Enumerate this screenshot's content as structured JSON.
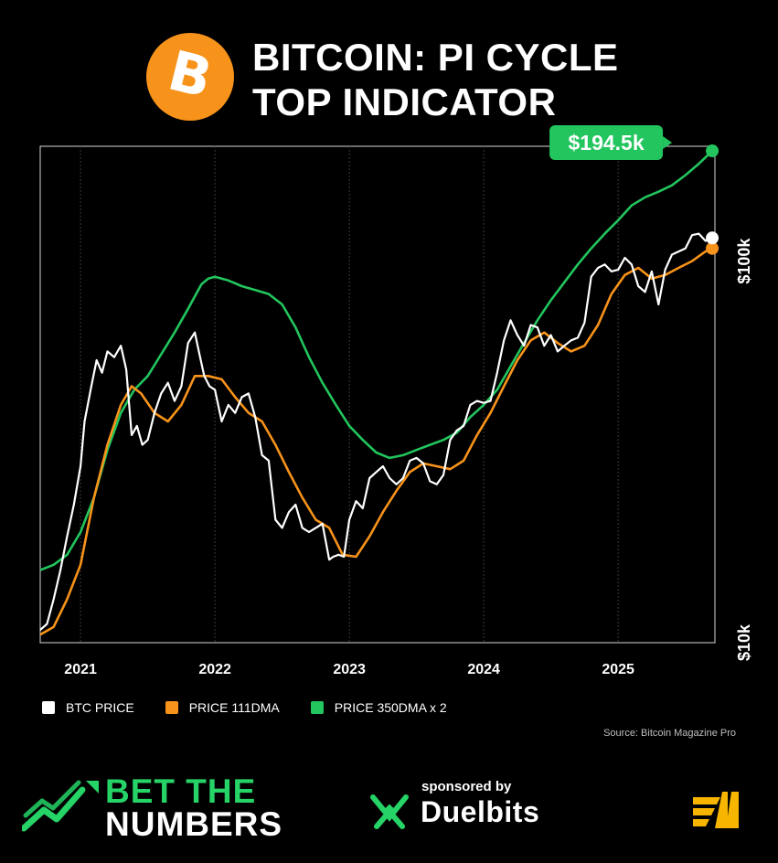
{
  "header": {
    "logo_icon": "bitcoin-logo-icon",
    "logo_symbol": "B",
    "title_line1": "BITCOIN: PI CYCLE",
    "title_line2": "TOP INDICATOR"
  },
  "colors": {
    "btc": "#ffffff",
    "dma111": "#f7931a",
    "dma350x2": "#22c55e",
    "logo": "#f7931a",
    "brand_green": "#25d366"
  },
  "chart_data": {
    "type": "line",
    "title": "BITCOIN: PI CYCLE TOP INDICATOR",
    "xlabel": "",
    "ylabel": "",
    "yscale": "log",
    "ylim": [
      10000,
      200000
    ],
    "xlim": [
      2020.7,
      2025.72
    ],
    "x_ticks": [
      2021,
      2022,
      2023,
      2024,
      2025
    ],
    "x_tick_labels": [
      "2021",
      "2022",
      "2023",
      "2024",
      "2025"
    ],
    "y_ticks": [
      10000,
      100000
    ],
    "y_tick_labels": [
      "$10k",
      "$100k"
    ],
    "grid": "vertical",
    "callout": {
      "label": "$194.5k",
      "series": "PRICE 350DMA x 2",
      "value": 194500
    },
    "series": [
      {
        "name": "BTC PRICE",
        "color": "#ffffff",
        "x": [
          2020.7,
          2020.75,
          2020.8,
          2020.85,
          2020.9,
          2020.95,
          2021.0,
          2021.03,
          2021.08,
          2021.12,
          2021.16,
          2021.2,
          2021.25,
          2021.3,
          2021.34,
          2021.38,
          2021.42,
          2021.46,
          2021.5,
          2021.55,
          2021.6,
          2021.65,
          2021.7,
          2021.75,
          2021.8,
          2021.85,
          2021.88,
          2021.92,
          2021.96,
          2022.0,
          2022.05,
          2022.1,
          2022.15,
          2022.2,
          2022.25,
          2022.3,
          2022.35,
          2022.4,
          2022.45,
          2022.5,
          2022.55,
          2022.6,
          2022.65,
          2022.7,
          2022.75,
          2022.8,
          2022.85,
          2022.88,
          2022.92,
          2022.96,
          2023.0,
          2023.05,
          2023.1,
          2023.15,
          2023.2,
          2023.25,
          2023.3,
          2023.35,
          2023.4,
          2023.45,
          2023.5,
          2023.55,
          2023.6,
          2023.65,
          2023.7,
          2023.75,
          2023.8,
          2023.85,
          2023.9,
          2023.95,
          2024.0,
          2024.05,
          2024.1,
          2024.15,
          2024.2,
          2024.25,
          2024.3,
          2024.35,
          2024.4,
          2024.45,
          2024.5,
          2024.55,
          2024.6,
          2024.65,
          2024.7,
          2024.75,
          2024.8,
          2024.85,
          2024.9,
          2024.95,
          2025.0,
          2025.05,
          2025.1,
          2025.15,
          2025.2,
          2025.25,
          2025.3,
          2025.35,
          2025.4,
          2025.45,
          2025.5,
          2025.55,
          2025.6,
          2025.65,
          2025.7
        ],
        "values": [
          10800,
          11200,
          13000,
          15500,
          19000,
          23000,
          29000,
          38000,
          47000,
          55000,
          51000,
          58000,
          56000,
          60000,
          52000,
          35000,
          37000,
          33000,
          34000,
          40000,
          45000,
          48000,
          43000,
          47000,
          61000,
          65000,
          58000,
          50000,
          47000,
          46000,
          38000,
          42000,
          40000,
          44000,
          45000,
          39000,
          31000,
          30000,
          21000,
          20000,
          22000,
          23000,
          20000,
          19500,
          20000,
          20500,
          16500,
          16800,
          17000,
          16800,
          21000,
          23500,
          22500,
          27000,
          28000,
          29000,
          27000,
          26000,
          27000,
          30000,
          30500,
          29500,
          26500,
          26000,
          27500,
          34000,
          36000,
          37000,
          42000,
          43000,
          42500,
          43000,
          51000,
          62000,
          70000,
          64000,
          60000,
          68000,
          67000,
          60000,
          64000,
          58000,
          60000,
          62000,
          63000,
          69000,
          91000,
          96000,
          98000,
          94000,
          95000,
          102000,
          98000,
          86000,
          83000,
          94000,
          77000,
          95000,
          104000,
          106000,
          108000,
          117000,
          118000,
          113000,
          115000
        ]
      },
      {
        "name": "PRICE 111DMA",
        "color": "#f7931a",
        "x": [
          2020.7,
          2020.8,
          2020.9,
          2021.0,
          2021.1,
          2021.2,
          2021.3,
          2021.38,
          2021.45,
          2021.55,
          2021.65,
          2021.75,
          2021.85,
          2021.95,
          2022.05,
          2022.15,
          2022.25,
          2022.35,
          2022.45,
          2022.55,
          2022.65,
          2022.75,
          2022.85,
          2022.95,
          2023.05,
          2023.15,
          2023.25,
          2023.35,
          2023.45,
          2023.55,
          2023.65,
          2023.75,
          2023.85,
          2023.95,
          2024.05,
          2024.15,
          2024.25,
          2024.35,
          2024.45,
          2024.55,
          2024.65,
          2024.75,
          2024.85,
          2024.95,
          2025.05,
          2025.15,
          2025.25,
          2025.35,
          2025.45,
          2025.55,
          2025.65,
          2025.7
        ],
        "values": [
          10500,
          11000,
          13000,
          16000,
          24000,
          33000,
          42000,
          47000,
          45000,
          40000,
          38000,
          42000,
          50000,
          50000,
          49000,
          44000,
          40000,
          38000,
          33000,
          28000,
          24000,
          21000,
          20000,
          17000,
          16800,
          19000,
          22000,
          25000,
          28000,
          29500,
          29000,
          28500,
          30000,
          35000,
          40000,
          47000,
          55000,
          62000,
          65000,
          61000,
          58000,
          60000,
          68000,
          82000,
          92000,
          96000,
          90000,
          92000,
          96000,
          100000,
          106000,
          108000
        ]
      },
      {
        "name": "PRICE 350DMA x 2",
        "color": "#22c55e",
        "x": [
          2020.7,
          2020.8,
          2020.9,
          2021.0,
          2021.1,
          2021.2,
          2021.3,
          2021.4,
          2021.5,
          2021.6,
          2021.7,
          2021.8,
          2021.9,
          2021.95,
          2022.0,
          2022.1,
          2022.2,
          2022.3,
          2022.4,
          2022.5,
          2022.6,
          2022.7,
          2022.8,
          2022.9,
          2023.0,
          2023.1,
          2023.2,
          2023.3,
          2023.4,
          2023.5,
          2023.6,
          2023.7,
          2023.8,
          2023.9,
          2024.0,
          2024.1,
          2024.2,
          2024.3,
          2024.4,
          2024.5,
          2024.6,
          2024.7,
          2024.8,
          2024.9,
          2025.0,
          2025.1,
          2025.2,
          2025.3,
          2025.4,
          2025.5,
          2025.6,
          2025.7
        ],
        "values": [
          15500,
          16000,
          17000,
          19500,
          24000,
          32000,
          40000,
          46000,
          50000,
          57000,
          65000,
          75000,
          87000,
          90000,
          91000,
          89000,
          86000,
          84000,
          82000,
          77000,
          67000,
          56000,
          48000,
          42000,
          37000,
          34000,
          31500,
          30500,
          31000,
          32000,
          33000,
          34000,
          35500,
          39000,
          42000,
          46000,
          53000,
          61000,
          70000,
          79000,
          88000,
          98000,
          108000,
          118000,
          128000,
          140000,
          147000,
          152000,
          158000,
          168000,
          180000,
          194500
        ]
      }
    ]
  },
  "legend": {
    "items": [
      {
        "label": "BTC PRICE",
        "color": "#ffffff"
      },
      {
        "label": "PRICE 111DMA",
        "color": "#f7931a"
      },
      {
        "label": "PRICE 350DMA x 2",
        "color": "#22c55e"
      }
    ]
  },
  "source": "Source: Bitcoin Magazine Pro",
  "footer": {
    "brand_line1": "BET THE",
    "brand_line2": "NUMBERS",
    "sponsored_by": "sponsored by",
    "sponsor_name": "Duelbits"
  }
}
